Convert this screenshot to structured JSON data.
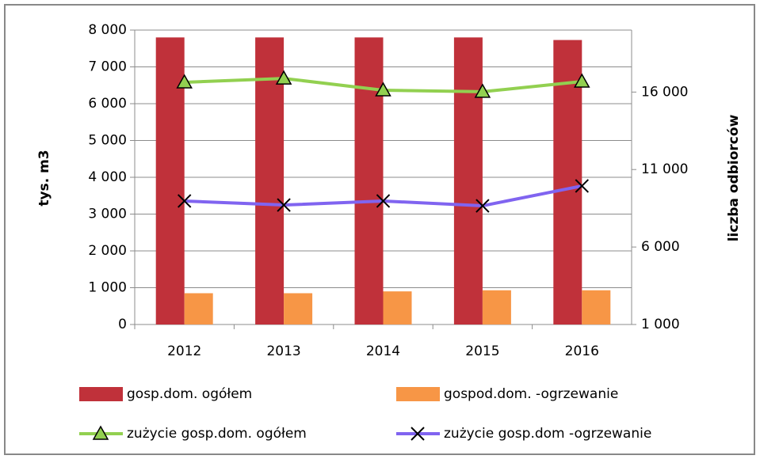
{
  "chart_data": {
    "type": "bar",
    "categories": [
      "2012",
      "2013",
      "2014",
      "2015",
      "2016"
    ],
    "ylabel": "tys. m3",
    "y2label": "liczba odbiorców",
    "ylim": [
      0,
      8000
    ],
    "yticks": [
      0,
      {
        "value": 1000,
        "label": "1 000"
      },
      {
        "value": 2000,
        "label": "2 000"
      },
      {
        "value": 3000,
        "label": "3 000"
      },
      {
        "value": 4000,
        "label": "4 000"
      },
      {
        "value": 5000,
        "label": "5 000"
      },
      {
        "value": 6000,
        "label": "6 000"
      },
      {
        "value": 7000,
        "label": "7 000"
      },
      {
        "value": 8000,
        "label": "8 000"
      }
    ],
    "y2lim": [
      1000,
      20000
    ],
    "y2ticks": [
      {
        "value": 1000,
        "label": "1 000"
      },
      {
        "value": 6000,
        "label": "6 000"
      },
      {
        "value": 11000,
        "label": "11 000"
      },
      {
        "value": 16000,
        "label": "16 000"
      }
    ],
    "grid": true,
    "legend": "bottom",
    "series": [
      {
        "name": "gosp.dom. ogółem",
        "type": "bar",
        "color": "#c0313a",
        "values": [
          7800,
          7800,
          7800,
          7800,
          7730
        ]
      },
      {
        "name": "gospod.dom. -ogrzewanie",
        "type": "bar",
        "color": "#f79646",
        "values": [
          850,
          850,
          900,
          930,
          930
        ]
      },
      {
        "name": "zużycie gosp.dom. ogółem",
        "type": "line",
        "axis": "y2",
        "marker": "triangle",
        "color": "#92d050",
        "values": [
          16630,
          16880,
          16120,
          16020,
          16680
        ]
      },
      {
        "name": "zużycie gosp.dom -ogrzewanie",
        "type": "line",
        "axis": "y2",
        "marker": "x",
        "color": "#8064f0",
        "values": [
          8970,
          8710,
          8970,
          8660,
          9940
        ]
      }
    ]
  }
}
